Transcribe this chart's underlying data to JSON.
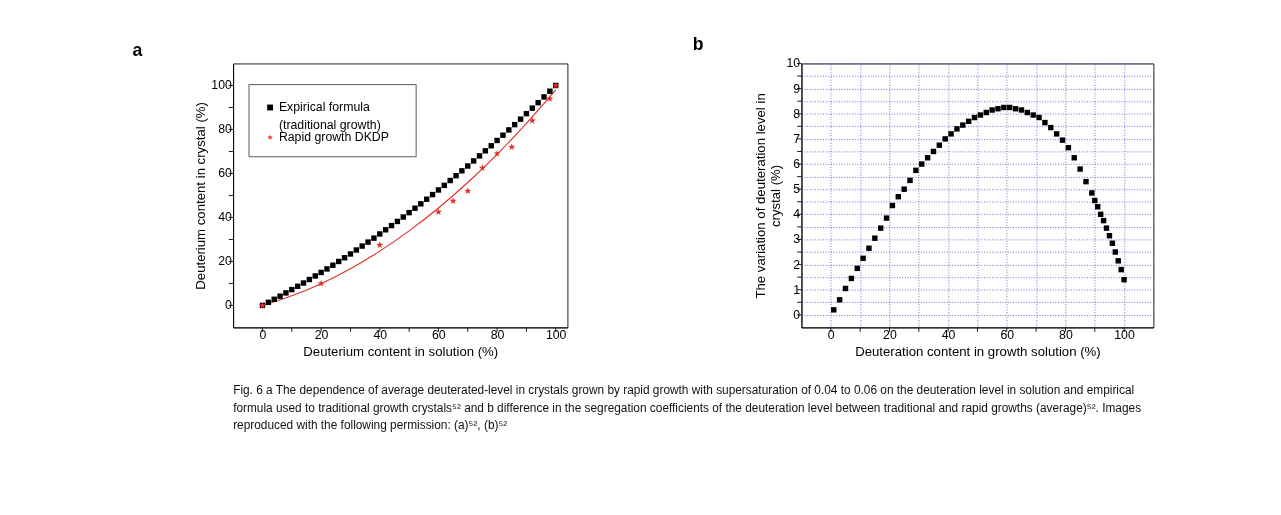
{
  "chart_data": [
    {
      "type": "scatter",
      "title": "a",
      "xlabel": "Deuterium content in solution (%)",
      "ylabel": "Deuterium content in crystal (%)",
      "xlim": [
        -10,
        104
      ],
      "ylim": [
        -10,
        110
      ],
      "xticks": [
        0,
        {
          "value": 10,
          "label": null
        },
        20,
        {
          "value": 30,
          "label": null
        },
        40,
        {
          "value": 50,
          "label": null
        },
        60,
        {
          "value": 70,
          "label": null
        },
        80,
        {
          "value": 90,
          "label": null
        },
        100
      ],
      "yticks": [
        0,
        {
          "value": 10,
          "label": null
        },
        20,
        {
          "value": 30,
          "label": null
        },
        40,
        {
          "value": 50,
          "label": null
        },
        60,
        {
          "value": 70,
          "label": null
        },
        80,
        {
          "value": 90,
          "label": null
        },
        100
      ],
      "grid": false,
      "legend": "top left",
      "series": [
        {
          "name": "Expirical formula (traditional growth)",
          "type": "scatter",
          "marker": "square",
          "color": "#000000",
          "x": [
            0,
            2,
            4,
            6,
            8,
            10,
            12,
            14,
            16,
            18,
            20,
            22,
            24,
            26,
            28,
            30,
            32,
            34,
            36,
            38,
            40,
            42,
            44,
            46,
            48,
            50,
            52,
            54,
            56,
            58,
            60,
            62,
            64,
            66,
            68,
            70,
            72,
            74,
            76,
            78,
            80,
            82,
            84,
            86,
            88,
            90,
            92,
            94,
            96,
            98,
            100
          ],
          "values": [
            0,
            1.4,
            2.8,
            4.2,
            5.7,
            7.2,
            8.7,
            10.2,
            11.8,
            13.4,
            15.0,
            16.6,
            18.3,
            20.0,
            21.7,
            23.4,
            25.2,
            27.0,
            28.8,
            30.6,
            32.5,
            34.4,
            36.3,
            38.2,
            40.2,
            42.2,
            44.2,
            46.2,
            48.3,
            50.4,
            52.5,
            54.6,
            56.8,
            59.0,
            61.2,
            63.4,
            65.7,
            68.0,
            70.3,
            72.6,
            75.0,
            77.4,
            79.8,
            82.2,
            84.7,
            87.2,
            89.7,
            92.2,
            94.8,
            97.4,
            100
          ]
        },
        {
          "name": "Rapid growth DKDP",
          "type": "scatter",
          "marker": "star",
          "color": "#e03028",
          "x": [
            0,
            20,
            40,
            60,
            65,
            70,
            75,
            80,
            85,
            92,
            98,
            100
          ],
          "values": [
            0,
            10,
            27.5,
            42.5,
            47.5,
            52,
            62.5,
            69,
            72,
            84,
            94,
            100
          ]
        },
        {
          "type": "line",
          "color": "#e03028",
          "line_style": "solid",
          "x": [
            0,
            10,
            20,
            30,
            40,
            50,
            60,
            70,
            80,
            90,
            100
          ],
          "values": [
            0,
            4.4,
            9.9,
            16.7,
            24.7,
            33.9,
            44.3,
            55.9,
            68.7,
            82.8,
            98.0
          ]
        }
      ],
      "annotations": [
        "Fig. 6 a The dependence of average deuterated-level in crystals grown by rapid growth with supersaturation of 0.04 to 0.06 on the deuteration level in solution and empirical formula used to traditional growth crystals⁵² and b difference in the segregation coefficients of the deuteration level between traditional and rapid growths (average)⁵². Images reproduced with the following permission: (a)⁵², (b)⁵²"
      ]
    },
    {
      "type": "scatter",
      "title": "b",
      "xlabel": "Deuteration content in growth solution (%)",
      "ylabel": "The variation of deuteration level in crystal (%)",
      "xlim": [
        -10,
        110
      ],
      "ylim": [
        -0.5,
        10
      ],
      "xticks": [
        0,
        {
          "value": 10,
          "label": null
        },
        20,
        {
          "value": 30,
          "label": null
        },
        40,
        {
          "value": 50,
          "label": null
        },
        60,
        {
          "value": 70,
          "label": null
        },
        80,
        {
          "value": 90,
          "label": null
        },
        100
      ],
      "yticks": [
        0,
        {
          "value": 0.5,
          "label": null
        },
        1,
        {
          "value": 1.5,
          "label": null
        },
        2,
        {
          "value": 2.5,
          "label": null
        },
        3,
        {
          "value": 3.5,
          "label": null
        },
        4,
        {
          "value": 4.5,
          "label": null
        },
        5,
        {
          "value": 5.5,
          "label": null
        },
        6,
        {
          "value": 6.5,
          "label": null
        },
        7,
        {
          "value": 7.5,
          "label": null
        },
        8,
        {
          "value": 8.5,
          "label": null
        },
        9,
        {
          "value": 9.5,
          "label": null
        },
        10
      ],
      "grid": true,
      "marker": "square",
      "series": [
        {
          "color": "#000000",
          "x": [
            1,
            3,
            5,
            7,
            9,
            11,
            13,
            15,
            17,
            19,
            21,
            23,
            25,
            27,
            29,
            31,
            33,
            35,
            37,
            39,
            41,
            43,
            45,
            47,
            49,
            51,
            53,
            55,
            57,
            59,
            61,
            63,
            65,
            67,
            69,
            71,
            73,
            75,
            77,
            79,
            81,
            83,
            85,
            87,
            89,
            90,
            91,
            92,
            93,
            94,
            95,
            96,
            97,
            98,
            99,
            100
          ],
          "values": [
            0.2,
            0.6,
            1.05,
            1.45,
            1.85,
            2.25,
            2.65,
            3.05,
            3.45,
            3.85,
            4.35,
            4.7,
            5.0,
            5.35,
            5.75,
            6.0,
            6.25,
            6.5,
            6.75,
            7.0,
            7.2,
            7.4,
            7.55,
            7.7,
            7.85,
            7.95,
            8.05,
            8.15,
            8.2,
            8.25,
            8.25,
            8.2,
            8.15,
            8.05,
            7.95,
            7.85,
            7.65,
            7.45,
            7.2,
            6.95,
            6.65,
            6.25,
            5.8,
            5.3,
            4.85,
            4.55,
            4.3,
            4.0,
            3.75,
            3.45,
            3.15,
            2.85,
            2.5,
            2.15,
            1.8,
            1.4
          ]
        }
      ]
    }
  ]
}
